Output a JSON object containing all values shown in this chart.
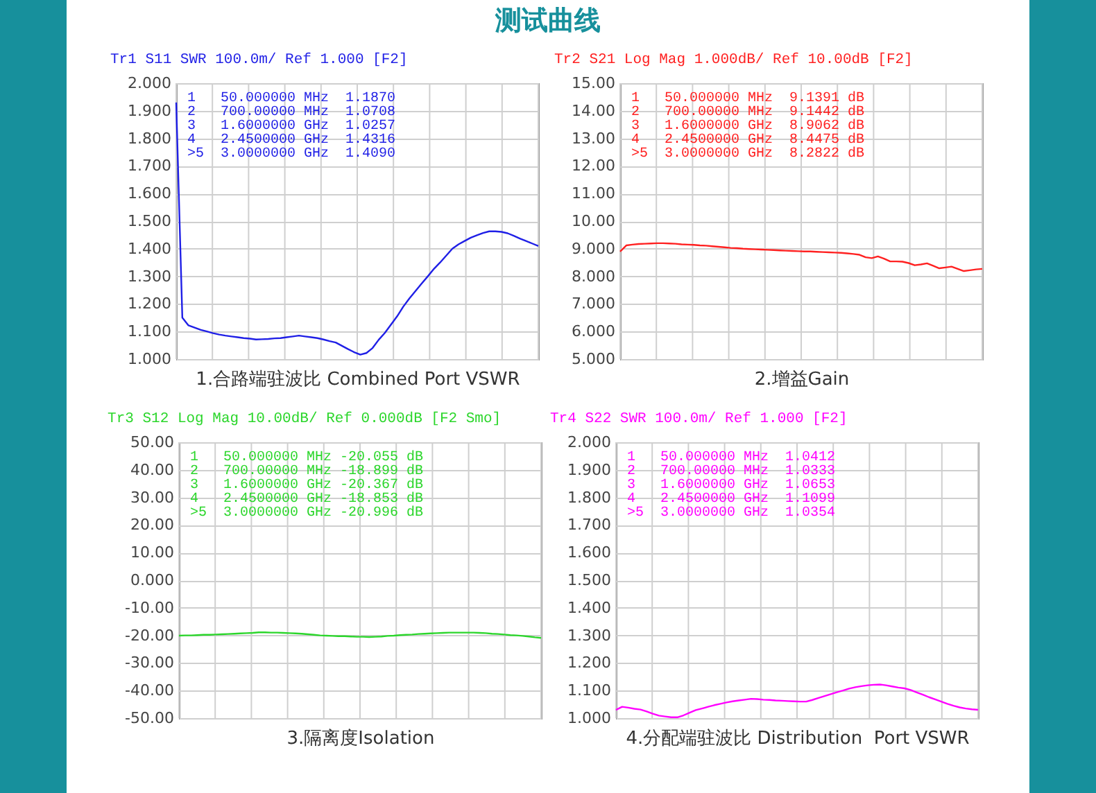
{
  "chart_data": [
    {
      "type": "other",
      "title": "测试曲线"
    },
    {
      "type": "line",
      "title": "Tr1 S11 SWR 100.0m/ Ref 1.000 [F2]",
      "xlabel": "1.合路端驻波比 Combined Port VSWR",
      "categories": [
        null,
        null,
        null,
        null,
        null,
        null,
        null,
        null,
        null,
        null,
        null,
        null,
        null,
        null,
        null,
        null,
        null,
        null,
        null,
        null,
        null,
        null,
        null,
        null,
        null,
        null,
        null,
        null,
        null,
        null,
        null,
        null,
        null,
        null,
        null,
        null,
        null,
        null,
        null,
        null,
        null,
        null,
        null,
        null,
        null,
        null,
        null,
        null,
        null,
        null,
        null,
        null,
        null,
        null,
        null,
        null,
        null,
        null,
        null,
        null
      ],
      "series": [
        {
          "color": "#1f1fe6",
          "values": [
            1.93,
            1.15,
            1.122,
            1.114,
            1.106,
            1.1,
            1.094,
            1.089,
            1.085,
            1.082,
            1.079,
            1.076,
            1.074,
            1.071,
            1.072,
            1.073,
            1.075,
            1.076,
            1.079,
            1.082,
            1.085,
            1.082,
            1.079,
            1.076,
            1.071,
            1.065,
            1.06,
            1.048,
            1.036,
            1.025,
            1.016,
            1.022,
            1.04,
            1.07,
            1.095,
            1.125,
            1.155,
            1.19,
            1.22,
            1.247,
            1.274,
            1.3,
            1.327,
            1.35,
            1.375,
            1.4,
            1.416,
            1.428,
            1.44,
            1.449,
            1.457,
            1.463,
            1.463,
            1.461,
            1.456,
            1.447,
            1.437,
            1.428,
            1.419,
            1.41
          ]
        }
      ],
      "ylim": [
        1,
        2
      ],
      "yticks": [
        {
          "value": 1,
          "label": "1.000"
        },
        {
          "value": 1.1,
          "label": "1.100"
        },
        {
          "value": 1.2,
          "label": "1.200"
        },
        {
          "value": 1.3,
          "label": "1.300"
        },
        {
          "value": 1.4,
          "label": "1.400"
        },
        {
          "value": 1.5,
          "label": "1.500"
        },
        {
          "value": 1.6,
          "label": "1.600"
        },
        {
          "value": 1.7,
          "label": "1.700"
        },
        {
          "value": 1.8,
          "label": "1.800"
        },
        {
          "value": 1.9,
          "label": "1.900"
        },
        {
          "value": 2,
          "label": "2.000"
        }
      ],
      "annotations": [
        "1   50.000000 MHz  1.1870",
        "2   700.00000 MHz  1.0708",
        "3   1.6000000 GHz  1.0257",
        "4   2.4500000 GHz  1.4316",
        ">5  3.0000000 GHz  1.4090"
      ],
      "grid": true,
      "tick_labels": "y"
    },
    {
      "type": "line",
      "title": "Tr2 S21 Log Mag 1.000dB/ Ref 10.00dB [F2]",
      "xlabel": "2.增益Gain",
      "categories": [
        null,
        null,
        null,
        null,
        null,
        null,
        null,
        null,
        null,
        null,
        null,
        null,
        null,
        null,
        null,
        null,
        null,
        null,
        null,
        null,
        null,
        null,
        null,
        null,
        null,
        null,
        null,
        null,
        null,
        null,
        null,
        null,
        null,
        null,
        null,
        null,
        null,
        null,
        null,
        null,
        null,
        null,
        null,
        null,
        null,
        null,
        null,
        null,
        null,
        null,
        null,
        null,
        null,
        null,
        null,
        null,
        null,
        null,
        null,
        null
      ],
      "series": [
        {
          "color": "#ff2020",
          "values": [
            8.9,
            9.12,
            9.15,
            9.17,
            9.18,
            9.19,
            9.2,
            9.2,
            9.19,
            9.18,
            9.16,
            9.15,
            9.14,
            9.12,
            9.11,
            9.09,
            9.07,
            9.05,
            9.03,
            9.02,
            9.0,
            8.99,
            8.98,
            8.97,
            8.96,
            8.95,
            8.94,
            8.93,
            8.92,
            8.91,
            8.9,
            8.9,
            8.89,
            8.88,
            8.87,
            8.86,
            8.85,
            8.83,
            8.81,
            8.78,
            8.69,
            8.66,
            8.72,
            8.64,
            8.54,
            8.54,
            8.53,
            8.48,
            8.4,
            8.43,
            8.47,
            8.38,
            8.29,
            8.32,
            8.35,
            8.27,
            8.19,
            8.22,
            8.25,
            8.27
          ]
        }
      ],
      "ylim": [
        5,
        15
      ],
      "yticks": [
        {
          "value": 5,
          "label": "5.000"
        },
        {
          "value": 6,
          "label": "6.000"
        },
        {
          "value": 7,
          "label": "7.000"
        },
        {
          "value": 8,
          "label": "8.000"
        },
        {
          "value": 9,
          "label": "9.000"
        },
        {
          "value": 10,
          "label": "10.00"
        },
        {
          "value": 11,
          "label": "11.00"
        },
        {
          "value": 12,
          "label": "12.00"
        },
        {
          "value": 13,
          "label": "13.00"
        },
        {
          "value": 14,
          "label": "14.00"
        },
        {
          "value": 15,
          "label": "15.00"
        }
      ],
      "annotations": [
        "1   50.000000 MHz  9.1391 dB",
        "2   700.00000 MHz  9.1442 dB",
        "3   1.6000000 GHz  8.9062 dB",
        "4   2.4500000 GHz  8.4475 dB",
        ">5  3.0000000 GHz  8.2822 dB"
      ],
      "grid": true,
      "tick_labels": "y"
    },
    {
      "type": "line",
      "title": "Tr3 S12 Log Mag 10.00dB/ Ref 0.000dB [F2 Smo]",
      "xlabel": "3.隔离度Isolation",
      "categories": [
        null,
        null,
        null,
        null,
        null,
        null,
        null,
        null,
        null,
        null,
        null,
        null,
        null,
        null,
        null,
        null,
        null,
        null,
        null,
        null,
        null,
        null,
        null,
        null,
        null,
        null,
        null,
        null,
        null,
        null,
        null,
        null,
        null,
        null,
        null,
        null,
        null,
        null,
        null,
        null,
        null,
        null,
        null,
        null,
        null,
        null,
        null,
        null,
        null,
        null,
        null,
        null,
        null,
        null,
        null,
        null,
        null,
        null,
        null,
        null
      ],
      "series": [
        {
          "color": "#2bd62b",
          "values": [
            -20.1,
            -20.0,
            -20.0,
            -19.9,
            -19.8,
            -19.8,
            -19.7,
            -19.6,
            -19.5,
            -19.4,
            -19.3,
            -19.2,
            -19.1,
            -18.9,
            -18.9,
            -19.0,
            -19.0,
            -19.1,
            -19.2,
            -19.3,
            -19.4,
            -19.6,
            -19.8,
            -20.0,
            -20.1,
            -20.2,
            -20.3,
            -20.3,
            -20.4,
            -20.5,
            -20.5,
            -20.6,
            -20.5,
            -20.4,
            -20.2,
            -20.1,
            -19.9,
            -19.8,
            -19.7,
            -19.5,
            -19.4,
            -19.3,
            -19.2,
            -19.1,
            -19.0,
            -19.0,
            -19.0,
            -19.0,
            -19.0,
            -19.1,
            -19.2,
            -19.4,
            -19.5,
            -19.7,
            -19.9,
            -20.0,
            -20.2,
            -20.4,
            -20.7,
            -20.9
          ]
        }
      ],
      "ylim": [
        -50,
        50
      ],
      "yticks": [
        {
          "value": -50,
          "label": "-50.00"
        },
        {
          "value": -40,
          "label": "-40.00"
        },
        {
          "value": -30,
          "label": "-30.00"
        },
        {
          "value": -20,
          "label": "-20.00"
        },
        {
          "value": -10,
          "label": "-10.00"
        },
        {
          "value": 0,
          "label": "0.000"
        },
        {
          "value": 10,
          "label": "10.00"
        },
        {
          "value": 20,
          "label": "20.00"
        },
        {
          "value": 30,
          "label": "30.00"
        },
        {
          "value": 40,
          "label": "40.00"
        },
        {
          "value": 50,
          "label": "50.00"
        }
      ],
      "annotations": [
        "1   50.000000 MHz -20.055 dB",
        "2   700.00000 MHz -18.899 dB",
        "3   1.6000000 GHz -20.367 dB",
        "4   2.4500000 GHz -18.853 dB",
        ">5  3.0000000 GHz -20.996 dB"
      ],
      "grid": true,
      "tick_labels": "y"
    },
    {
      "type": "line",
      "title": "Tr4 S22 SWR 100.0m/ Ref 1.000 [F2]",
      "xlabel": "4.分配端驻波比 Distribution  Port VSWR",
      "categories": [
        null,
        null,
        null,
        null,
        null,
        null,
        null,
        null,
        null,
        null,
        null,
        null,
        null,
        null,
        null,
        null,
        null,
        null,
        null,
        null,
        null,
        null,
        null,
        null,
        null,
        null,
        null,
        null,
        null,
        null,
        null,
        null,
        null,
        null,
        null,
        null,
        null,
        null,
        null,
        null,
        null,
        null,
        null,
        null,
        null,
        null,
        null,
        null,
        null,
        null,
        null,
        null,
        null,
        null,
        null,
        null,
        null,
        null,
        null,
        null
      ],
      "series": [
        {
          "color": "#ff00ff",
          "values": [
            1.03,
            1.041,
            1.038,
            1.034,
            1.031,
            1.024,
            1.016,
            1.009,
            1.006,
            1.003,
            1.003,
            1.01,
            1.02,
            1.029,
            1.035,
            1.041,
            1.047,
            1.052,
            1.057,
            1.061,
            1.064,
            1.067,
            1.07,
            1.069,
            1.067,
            1.066,
            1.064,
            1.063,
            1.062,
            1.061,
            1.06,
            1.06,
            1.066,
            1.073,
            1.08,
            1.087,
            1.094,
            1.1,
            1.107,
            1.112,
            1.116,
            1.119,
            1.121,
            1.122,
            1.119,
            1.115,
            1.111,
            1.108,
            1.102,
            1.093,
            1.085,
            1.076,
            1.068,
            1.06,
            1.052,
            1.045,
            1.039,
            1.035,
            1.032,
            1.03
          ]
        }
      ],
      "ylim": [
        1,
        2
      ],
      "yticks": [
        {
          "value": 1,
          "label": "1.000"
        },
        {
          "value": 1.1,
          "label": "1.100"
        },
        {
          "value": 1.2,
          "label": "1.200"
        },
        {
          "value": 1.3,
          "label": "1.300"
        },
        {
          "value": 1.4,
          "label": "1.400"
        },
        {
          "value": 1.5,
          "label": "1.500"
        },
        {
          "value": 1.6,
          "label": "1.600"
        },
        {
          "value": 1.7,
          "label": "1.700"
        },
        {
          "value": 1.8,
          "label": "1.800"
        },
        {
          "value": 1.9,
          "label": "1.900"
        },
        {
          "value": 2,
          "label": "2.000"
        }
      ],
      "annotations": [
        "1   50.000000 MHz  1.0412",
        "2   700.00000 MHz  1.0333",
        "3   1.6000000 GHz  1.0653",
        "4   2.4500000 GHz  1.1099",
        ">5  3.0000000 GHz  1.0354"
      ],
      "grid": true,
      "tick_labels": "y"
    }
  ]
}
